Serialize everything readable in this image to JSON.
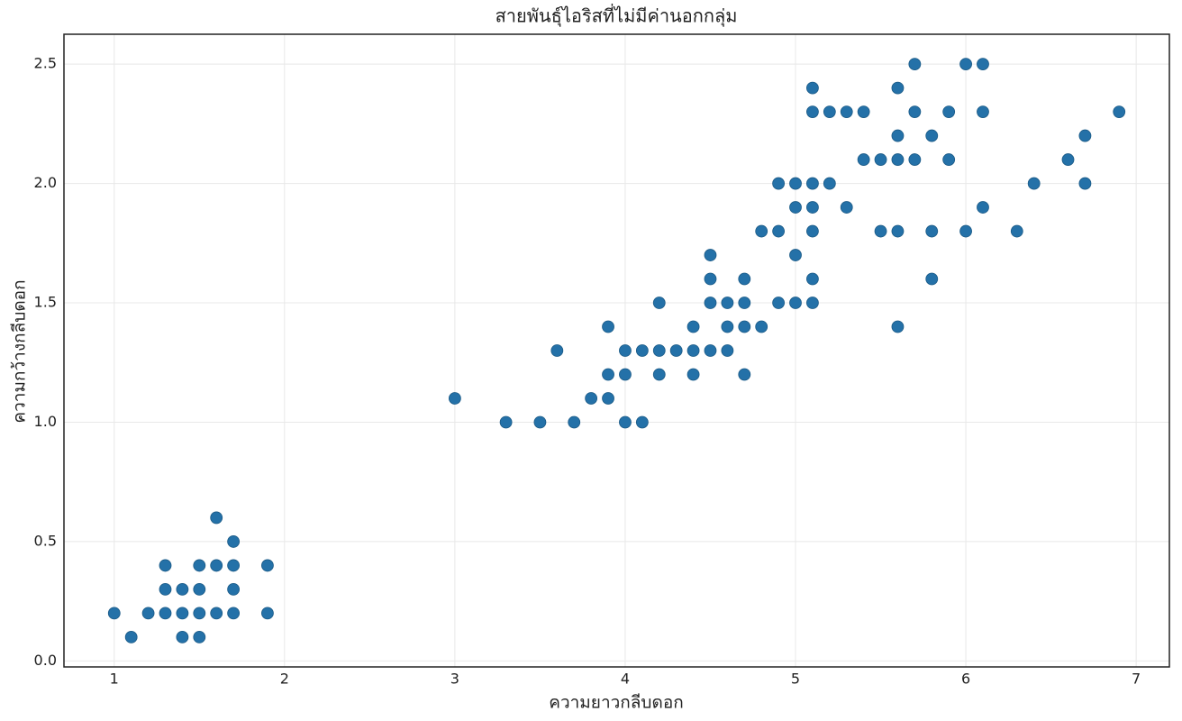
{
  "chart_data": {
    "type": "scatter",
    "title": "สายพันธุ์ไอริสที่ไม่มีค่านอกกลุ่ม",
    "x_label": "ความยาวกลีบดอก",
    "y_label": "ความกว้างกลีบดอก",
    "color": "#2471a8",
    "grid": true,
    "xlim": [
      0.705,
      7.195
    ],
    "ylim": [
      -0.025,
      2.625
    ],
    "xticks": [
      1,
      2,
      3,
      4,
      5,
      6,
      7
    ],
    "yticks": [
      {
        "value": 0,
        "label": "0.0"
      },
      0.5,
      {
        "value": 1,
        "label": "1.0"
      },
      1.5,
      {
        "value": 2,
        "label": "2.0"
      },
      2.5
    ],
    "x": [
      1,
      1.1,
      1.2,
      1.3,
      1.3,
      1.3,
      1.4,
      1.4,
      1.4,
      1.5,
      1.5,
      1.5,
      1.5,
      1.6,
      1.6,
      1.6,
      1.7,
      1.7,
      1.7,
      1.7,
      1.9,
      1.9,
      3,
      3.3,
      3.5,
      3.6,
      3.7,
      3.8,
      3.9,
      3.9,
      3.9,
      4.0,
      4.0,
      4.0,
      4.1,
      4.1,
      4.2,
      4.2,
      4.2,
      4.3,
      4.4,
      4.4,
      4.4,
      4.5,
      4.5,
      4.5,
      4.5,
      4.6,
      4.6,
      4.6,
      4.7,
      4.7,
      4.7,
      4.7,
      4.8,
      4.8,
      4.9,
      4.9,
      4.9,
      5.0,
      5.0,
      5.0,
      5.0,
      5.1,
      5.1,
      5.1,
      5.1,
      5.1,
      5.1,
      5.1,
      5.2,
      5.2,
      5.3,
      5.3,
      5.4,
      5.4,
      5.5,
      5.5,
      5.6,
      5.6,
      5.6,
      5.6,
      5.6,
      5.7,
      5.7,
      5.7,
      5.8,
      5.8,
      5.8,
      5.9,
      5.9,
      6.0,
      6.0,
      6.1,
      6.1,
      6.1,
      6.3,
      6.4,
      6.6,
      6.7,
      6.7,
      6.9
    ],
    "y": [
      0.2,
      0.1,
      0.2,
      0.2,
      0.3,
      0.4,
      0.1,
      0.2,
      0.3,
      0.1,
      0.2,
      0.3,
      0.4,
      0.2,
      0.4,
      0.6,
      0.2,
      0.3,
      0.4,
      0.5,
      0.2,
      0.4,
      1.1,
      1.0,
      1.0,
      1.3,
      1.0,
      1.1,
      1.1,
      1.2,
      1.4,
      1.0,
      1.2,
      1.3,
      1.0,
      1.3,
      1.2,
      1.3,
      1.5,
      1.3,
      1.2,
      1.3,
      1.4,
      1.3,
      1.5,
      1.6,
      1.7,
      1.3,
      1.4,
      1.5,
      1.2,
      1.4,
      1.5,
      1.6,
      1.4,
      1.8,
      1.5,
      1.8,
      2.0,
      1.5,
      1.7,
      1.9,
      2.0,
      1.5,
      1.6,
      1.8,
      1.9,
      2.0,
      2.3,
      2.4,
      2.0,
      2.3,
      1.9,
      2.3,
      2.1,
      2.3,
      1.8,
      2.1,
      1.4,
      1.8,
      2.1,
      2.2,
      2.4,
      2.1,
      2.3,
      2.5,
      1.6,
      1.8,
      2.2,
      2.1,
      2.3,
      1.8,
      2.5,
      1.9,
      2.3,
      2.5,
      1.8,
      2.0,
      2.1,
      2.0,
      2.2,
      2.3
    ]
  }
}
